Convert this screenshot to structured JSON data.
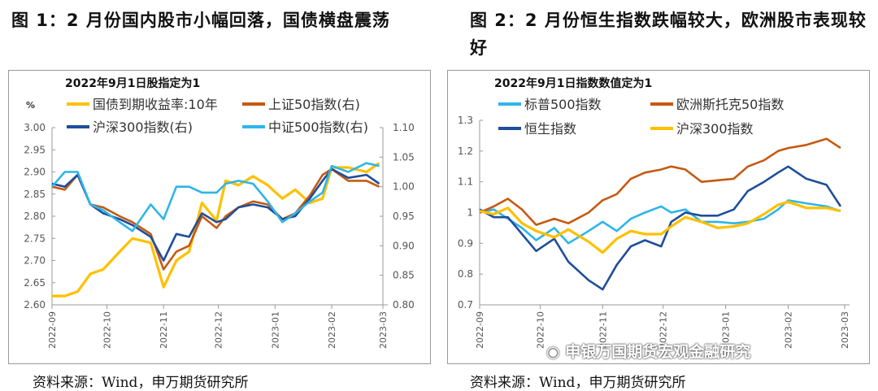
{
  "figure1": {
    "title": "图 1：2 月份国内股市小幅回落，国债横盘震荡",
    "source": "资料来源：Wind，申万期货研究所"
  },
  "figure2": {
    "title": "图 2：2 月份恒生指数跌幅较大，欧洲股市表现较好",
    "source": "资料来源：Wind，申万期货研究所"
  },
  "watermark": "申银万国期货宏观金融研究",
  "chart_data": [
    {
      "type": "line",
      "subtitle": "2022年9月1日股指定为1",
      "ylabel": "%",
      "ylim": [
        2.6,
        3.0
      ],
      "yticks": [
        "2.60",
        "2.65",
        "2.70",
        "2.75",
        "2.80",
        "2.85",
        "2.90",
        "2.95",
        "3.00"
      ],
      "y2lim": [
        0.8,
        1.1
      ],
      "y2ticks": [
        "0.80",
        "0.85",
        "0.90",
        "0.95",
        "1.00",
        "1.05",
        "1.10"
      ],
      "xticks": [
        "2022-09",
        "2022-10",
        "2022-11",
        "2022-12",
        "2023-01",
        "2023-02",
        "2023-03"
      ],
      "legend": "top",
      "grid": false,
      "x": [
        "2022-09-01",
        "2022-09-08",
        "2022-09-15",
        "2022-09-22",
        "2022-09-29",
        "2022-10-08",
        "2022-10-15",
        "2022-10-25",
        "2022-11-01",
        "2022-11-08",
        "2022-11-15",
        "2022-11-22",
        "2022-11-30",
        "2022-12-05",
        "2022-12-12",
        "2022-12-20",
        "2022-12-28",
        "2023-01-05",
        "2023-01-12",
        "2023-01-20",
        "2023-01-27",
        "2023-02-01",
        "2023-02-10",
        "2023-02-20",
        "2023-02-27"
      ],
      "series": [
        {
          "name": "国债到期收益率:10年",
          "axis": "left",
          "color": "#FFC000",
          "values": [
            2.62,
            2.62,
            2.63,
            2.67,
            2.68,
            2.72,
            2.75,
            2.74,
            2.64,
            2.7,
            2.72,
            2.83,
            2.79,
            2.88,
            2.87,
            2.89,
            2.87,
            2.84,
            2.86,
            2.83,
            2.84,
            2.91,
            2.91,
            2.9,
            2.92
          ]
        },
        {
          "name": "上证50指数(右)",
          "axis": "right",
          "color": "#C55A11",
          "values": [
            1.0,
            0.995,
            1.02,
            0.97,
            0.965,
            0.95,
            0.94,
            0.92,
            0.86,
            0.89,
            0.9,
            0.95,
            0.93,
            0.95,
            0.965,
            0.975,
            0.97,
            0.945,
            0.955,
            0.985,
            1.02,
            1.03,
            1.01,
            1.01,
            1.0
          ]
        },
        {
          "name": "沪深300指数(右)",
          "axis": "right",
          "color": "#1F4E9A",
          "values": [
            1.005,
            1.0,
            1.02,
            0.97,
            0.955,
            0.945,
            0.935,
            0.915,
            0.875,
            0.92,
            0.915,
            0.955,
            0.94,
            0.945,
            0.965,
            0.97,
            0.965,
            0.945,
            0.95,
            0.98,
            1.01,
            1.03,
            1.015,
            1.02,
            1.005
          ]
        },
        {
          "name": "中证500指数(右)",
          "axis": "right",
          "color": "#2EB5EA",
          "values": [
            1.0,
            1.025,
            1.025,
            0.97,
            0.96,
            0.94,
            0.925,
            0.97,
            0.945,
            1.0,
            1.0,
            0.99,
            0.99,
            1.005,
            1.01,
            1.005,
            0.975,
            0.94,
            0.955,
            0.975,
            0.99,
            1.035,
            1.025,
            1.04,
            1.035
          ]
        }
      ]
    },
    {
      "type": "line",
      "subtitle": "2022年9月1日指数数值定为1",
      "ylim": [
        0.7,
        1.3
      ],
      "yticks": [
        "0.7",
        "0.8",
        "0.9",
        "1",
        "1.1",
        "1.2",
        "1.3"
      ],
      "xticks": [
        "2022-09",
        "2022-10",
        "2022-11",
        "2022-12",
        "2023-01",
        "2023-02",
        "2023-03"
      ],
      "legend": "top",
      "grid": false,
      "x": [
        "2022-09-01",
        "2022-09-08",
        "2022-09-15",
        "2022-09-22",
        "2022-09-29",
        "2022-10-08",
        "2022-10-15",
        "2022-10-25",
        "2022-11-01",
        "2022-11-08",
        "2022-11-15",
        "2022-11-22",
        "2022-11-30",
        "2022-12-05",
        "2022-12-12",
        "2022-12-20",
        "2022-12-28",
        "2023-01-05",
        "2023-01-12",
        "2023-01-20",
        "2023-01-27",
        "2023-02-01",
        "2023-02-10",
        "2023-02-20",
        "2023-02-27"
      ],
      "series": [
        {
          "name": "标普500指数",
          "color": "#2EB5EA",
          "values": [
            1.0,
            1.01,
            0.98,
            0.95,
            0.91,
            0.95,
            0.9,
            0.94,
            0.97,
            0.94,
            0.98,
            1.0,
            1.02,
            1.0,
            1.01,
            0.97,
            0.97,
            0.965,
            0.97,
            0.98,
            1.01,
            1.04,
            1.03,
            1.02,
            1.005
          ]
        },
        {
          "name": "欧洲斯托克50指数",
          "color": "#C55A11",
          "values": [
            1.0,
            1.02,
            1.045,
            1.01,
            0.96,
            0.98,
            0.965,
            1.0,
            1.04,
            1.06,
            1.11,
            1.13,
            1.14,
            1.15,
            1.14,
            1.1,
            1.105,
            1.11,
            1.15,
            1.17,
            1.2,
            1.21,
            1.22,
            1.24,
            1.21
          ]
        },
        {
          "name": "恒生指数",
          "color": "#1F4E9A",
          "values": [
            1.01,
            0.985,
            0.985,
            0.93,
            0.875,
            0.915,
            0.84,
            0.78,
            0.75,
            0.83,
            0.89,
            0.91,
            0.89,
            0.97,
            1.0,
            0.99,
            0.99,
            1.01,
            1.07,
            1.1,
            1.13,
            1.15,
            1.11,
            1.09,
            1.02
          ]
        },
        {
          "name": "沪深300指数",
          "color": "#FFC000",
          "values": [
            1.005,
            0.995,
            1.015,
            0.965,
            0.94,
            0.92,
            0.945,
            0.905,
            0.87,
            0.915,
            0.94,
            0.93,
            0.93,
            0.955,
            0.985,
            0.97,
            0.95,
            0.955,
            0.965,
            0.995,
            1.025,
            1.035,
            1.015,
            1.015,
            1.005
          ]
        }
      ]
    }
  ]
}
